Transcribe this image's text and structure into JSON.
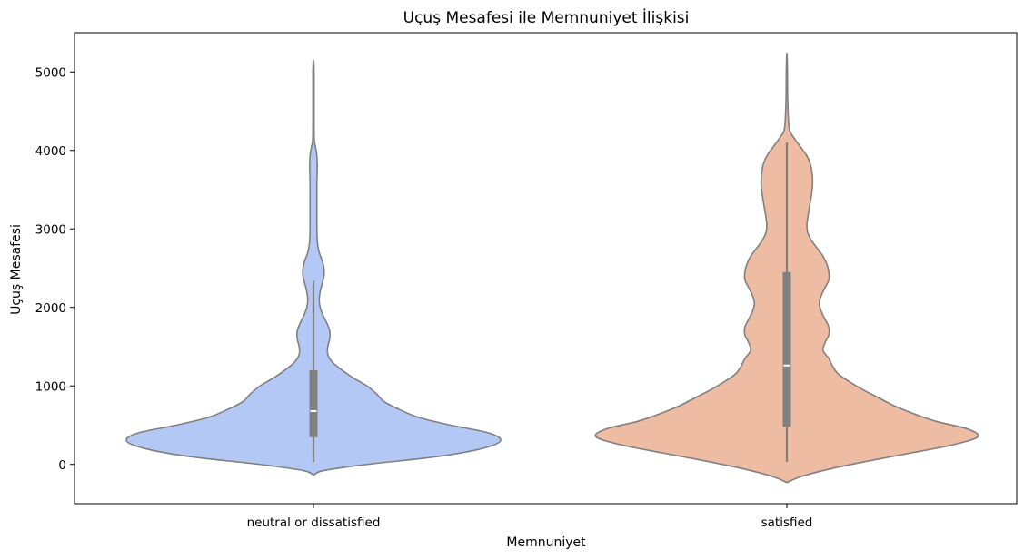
{
  "chart_data": {
    "type": "violin",
    "title": "Uçuş Mesafesi ile Memnuniyet İlişkisi",
    "xlabel": "Memnuniyet",
    "ylabel": "Uçuş Mesafesi",
    "categories": [
      "neutral or dissatisfied",
      "satisfied"
    ],
    "ylim": [
      -500,
      5500
    ],
    "yticks": [
      0,
      1000,
      2000,
      3000,
      4000,
      5000
    ],
    "grid": false,
    "colors": {
      "neutral or dissatisfied": "#b3c8f4",
      "satisfied": "#eebba3",
      "outline": "#808080",
      "box": "#808080",
      "median": "#ffffff"
    },
    "series": [
      {
        "category": "neutral or dissatisfied",
        "box": {
          "whisker_low": 31,
          "q1": 346,
          "median": 680,
          "q3": 1200,
          "whisker_high": 2340
        },
        "density": [
          [
            -140,
            0.0
          ],
          [
            -80,
            0.05
          ],
          [
            0,
            0.28
          ],
          [
            100,
            0.65
          ],
          [
            200,
            0.88
          ],
          [
            300,
            0.98
          ],
          [
            400,
            0.92
          ],
          [
            500,
            0.72
          ],
          [
            600,
            0.55
          ],
          [
            700,
            0.45
          ],
          [
            800,
            0.37
          ],
          [
            900,
            0.33
          ],
          [
            1000,
            0.28
          ],
          [
            1100,
            0.21
          ],
          [
            1200,
            0.15
          ],
          [
            1300,
            0.1
          ],
          [
            1400,
            0.075
          ],
          [
            1500,
            0.075
          ],
          [
            1600,
            0.085
          ],
          [
            1700,
            0.085
          ],
          [
            1800,
            0.07
          ],
          [
            1900,
            0.05
          ],
          [
            2000,
            0.035
          ],
          [
            2100,
            0.03
          ],
          [
            2200,
            0.035
          ],
          [
            2300,
            0.045
          ],
          [
            2400,
            0.055
          ],
          [
            2500,
            0.055
          ],
          [
            2600,
            0.045
          ],
          [
            2700,
            0.03
          ],
          [
            2800,
            0.022
          ],
          [
            2900,
            0.019
          ],
          [
            3000,
            0.018
          ],
          [
            3200,
            0.018
          ],
          [
            3400,
            0.018
          ],
          [
            3600,
            0.018
          ],
          [
            3800,
            0.02
          ],
          [
            3950,
            0.017
          ],
          [
            4050,
            0.01
          ],
          [
            4150,
            0.004
          ],
          [
            4500,
            0.003
          ],
          [
            5000,
            0.003
          ],
          [
            5150,
            0.0
          ]
        ]
      },
      {
        "category": "satisfied",
        "box": {
          "whisker_low": 31,
          "q1": 480,
          "median": 1260,
          "q3": 2450,
          "whisker_high": 4100
        },
        "density": [
          [
            -230,
            0.0
          ],
          [
            -150,
            0.08
          ],
          [
            -50,
            0.24
          ],
          [
            50,
            0.44
          ],
          [
            150,
            0.66
          ],
          [
            250,
            0.87
          ],
          [
            350,
            1.0
          ],
          [
            450,
            0.95
          ],
          [
            550,
            0.78
          ],
          [
            650,
            0.66
          ],
          [
            750,
            0.56
          ],
          [
            850,
            0.48
          ],
          [
            950,
            0.4
          ],
          [
            1050,
            0.33
          ],
          [
            1150,
            0.27
          ],
          [
            1250,
            0.24
          ],
          [
            1350,
            0.22
          ],
          [
            1450,
            0.19
          ],
          [
            1550,
            0.2
          ],
          [
            1650,
            0.22
          ],
          [
            1750,
            0.22
          ],
          [
            1850,
            0.2
          ],
          [
            1950,
            0.18
          ],
          [
            2050,
            0.17
          ],
          [
            2150,
            0.18
          ],
          [
            2250,
            0.2
          ],
          [
            2350,
            0.22
          ],
          [
            2450,
            0.22
          ],
          [
            2550,
            0.21
          ],
          [
            2650,
            0.19
          ],
          [
            2750,
            0.16
          ],
          [
            2850,
            0.13
          ],
          [
            2950,
            0.11
          ],
          [
            3050,
            0.105
          ],
          [
            3150,
            0.11
          ],
          [
            3300,
            0.12
          ],
          [
            3450,
            0.13
          ],
          [
            3600,
            0.135
          ],
          [
            3750,
            0.13
          ],
          [
            3850,
            0.12
          ],
          [
            3950,
            0.1
          ],
          [
            4050,
            0.07
          ],
          [
            4150,
            0.04
          ],
          [
            4250,
            0.015
          ],
          [
            4400,
            0.008
          ],
          [
            4700,
            0.004
          ],
          [
            5000,
            0.003
          ],
          [
            5240,
            0.0
          ]
        ]
      }
    ]
  }
}
